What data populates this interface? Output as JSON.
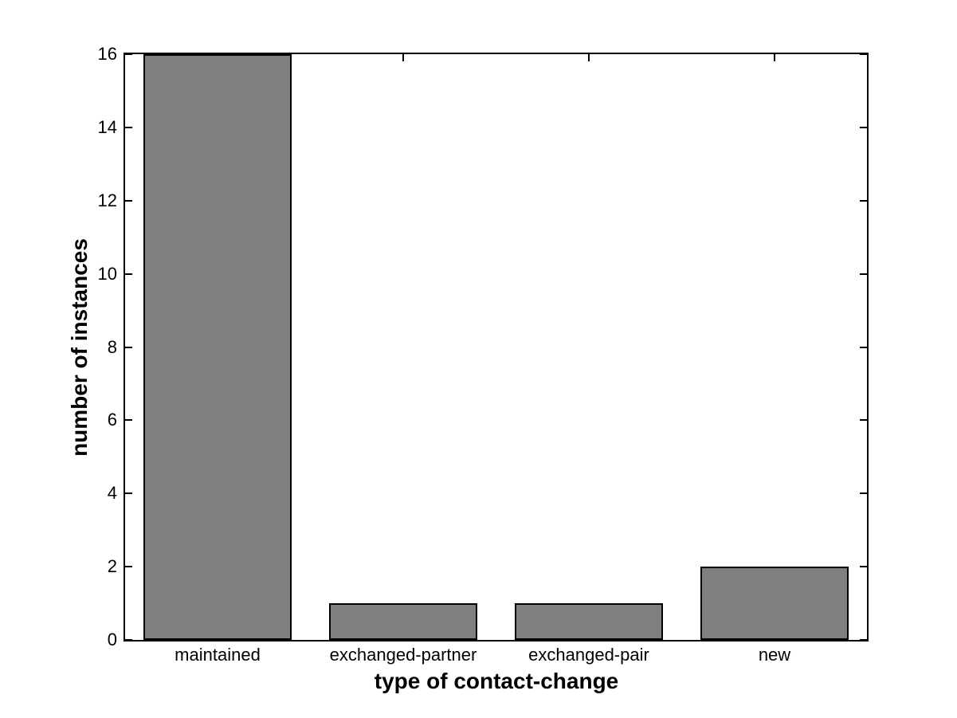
{
  "chart_data": {
    "type": "bar",
    "title": "",
    "xlabel": "type of contact-change",
    "ylabel": "number of instances",
    "categories": [
      "maintained",
      "exchanged-partner",
      "exchanged-pair",
      "new"
    ],
    "values": [
      16,
      1,
      1,
      2
    ],
    "ylim": [
      0,
      16
    ],
    "yticks": [
      0,
      2,
      4,
      6,
      8,
      10,
      12,
      14,
      16
    ],
    "bar_width_fraction": 0.8,
    "grid": false,
    "legend": null,
    "colors": {
      "bar_fill": "#808080",
      "bar_edge": "#000000",
      "axis": "#000000",
      "background": "#ffffff"
    }
  }
}
